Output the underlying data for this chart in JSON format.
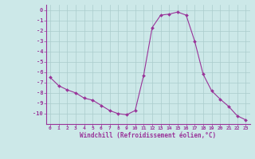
{
  "x": [
    0,
    1,
    2,
    3,
    4,
    5,
    6,
    7,
    8,
    9,
    10,
    11,
    12,
    13,
    14,
    15,
    16,
    17,
    18,
    19,
    20,
    21,
    22,
    23
  ],
  "y": [
    -6.5,
    -7.3,
    -7.7,
    -8.0,
    -8.5,
    -8.7,
    -9.2,
    -9.7,
    -10.0,
    -10.1,
    -9.7,
    -6.3,
    -1.7,
    -0.5,
    -0.4,
    -0.2,
    -0.5,
    -3.0,
    -6.2,
    -7.8,
    -8.6,
    -9.3,
    -10.2,
    -10.6
  ],
  "line_color": "#993399",
  "marker": "D",
  "marker_size": 2,
  "bg_color": "#cce8e8",
  "grid_color": "#aacccc",
  "xlabel": "Windchill (Refroidissement éolien,°C)",
  "xlabel_color": "#993399",
  "tick_color": "#993399",
  "xlim": [
    -0.5,
    23.5
  ],
  "ylim": [
    -11,
    0.5
  ],
  "xticks": [
    0,
    1,
    2,
    3,
    4,
    5,
    6,
    7,
    8,
    9,
    10,
    11,
    12,
    13,
    14,
    15,
    16,
    17,
    18,
    19,
    20,
    21,
    22,
    23
  ],
  "yticks": [
    0,
    -1,
    -2,
    -3,
    -4,
    -5,
    -6,
    -7,
    -8,
    -9,
    -10
  ],
  "spine_color": "#993399",
  "spine_bottom_color": "#993399"
}
